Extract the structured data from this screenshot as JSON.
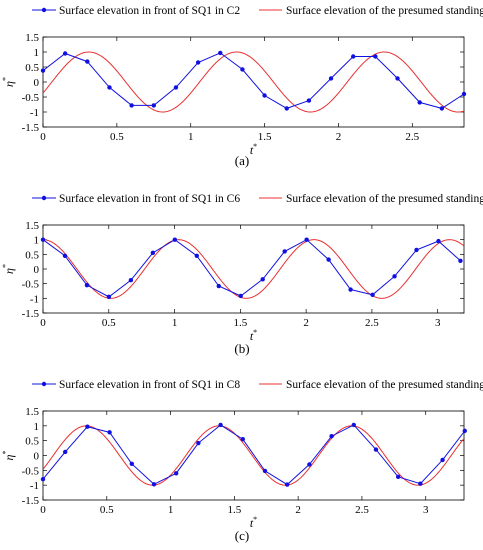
{
  "chart_data": [
    {
      "type": "line",
      "panel_label": "(a)",
      "xlabel": "t*",
      "ylabel": "η*",
      "xlim": [
        0,
        2.85
      ],
      "ylim": [
        -1.5,
        1.5
      ],
      "xticks": [
        "0",
        "0.5",
        "1",
        "1.5",
        "2",
        "2.5"
      ],
      "xtick_values": [
        0,
        0.5,
        1,
        1.5,
        2,
        2.5
      ],
      "yticks": [
        "-1.5",
        "-1",
        "-0.5",
        "0",
        "0.5",
        "1",
        "1.5"
      ],
      "ytick_values": [
        -1.5,
        -1,
        -0.5,
        0,
        0.5,
        1,
        1.5
      ],
      "grid": false,
      "legend_position": "top",
      "series": [
        {
          "name": "Surface elevation in front of SQ1 in C2",
          "color": "#1010e0",
          "marker": "dot",
          "x": [
            0,
            0.15,
            0.3,
            0.45,
            0.6,
            0.75,
            0.9,
            1.05,
            1.2,
            1.35,
            1.5,
            1.65,
            1.8,
            1.95,
            2.1,
            2.25,
            2.4,
            2.55,
            2.7,
            2.85
          ],
          "y": [
            0.38,
            0.95,
            0.68,
            -0.18,
            -0.78,
            -0.78,
            -0.18,
            0.65,
            0.97,
            0.42,
            -0.45,
            -0.88,
            -0.62,
            0.12,
            0.85,
            0.85,
            0.12,
            -0.68,
            -0.88,
            -0.4
          ]
        },
        {
          "name": "Surface elevation of the presumed standing wave",
          "color": "#e83030",
          "function": "sine",
          "amplitude": 1,
          "period": 1,
          "phase_offset": 0.06
        }
      ]
    },
    {
      "type": "line",
      "panel_label": "(b)",
      "xlabel": "t*",
      "ylabel": "η*",
      "xlim": [
        0,
        3.2
      ],
      "ylim": [
        -1.5,
        1.5
      ],
      "xticks": [
        "0",
        "0.5",
        "1",
        "1.5",
        "2",
        "2.5",
        "3"
      ],
      "xtick_values": [
        0,
        0.5,
        1,
        1.5,
        2,
        2.5,
        3
      ],
      "yticks": [
        "-1.5",
        "-1",
        "-0.5",
        "0",
        "0.5",
        "1",
        "1.5"
      ],
      "ytick_values": [
        -1.5,
        -1,
        -0.5,
        0,
        0.5,
        1,
        1.5
      ],
      "grid": false,
      "legend_position": "top",
      "series": [
        {
          "name": "Surface elevation in front of SQ1 in C6",
          "color": "#1010e0",
          "marker": "dot",
          "x": [
            0,
            0.167,
            0.334,
            0.501,
            0.668,
            0.835,
            1.002,
            1.169,
            1.336,
            1.503,
            1.67,
            1.837,
            2.004,
            2.171,
            2.338,
            2.505,
            2.672,
            2.839,
            3.006,
            3.173
          ],
          "y": [
            1.0,
            0.45,
            -0.55,
            -0.95,
            -0.38,
            0.55,
            1.0,
            0.45,
            -0.58,
            -0.92,
            -0.35,
            0.6,
            1.0,
            0.32,
            -0.7,
            -0.88,
            -0.25,
            0.65,
            0.95,
            0.28
          ]
        },
        {
          "name": "Surface elevation of the presumed standing wave",
          "color": "#e83030",
          "function": "cosine",
          "amplitude": 1,
          "period": 1.03,
          "phase_offset": 0
        }
      ]
    },
    {
      "type": "line",
      "panel_label": "(c)",
      "xlabel": "t*",
      "ylabel": "η*",
      "xlim": [
        0,
        3.3
      ],
      "ylim": [
        -1.5,
        1.5
      ],
      "xticks": [
        "0",
        "0.5",
        "1",
        "1.5",
        "2",
        "2.5",
        "3"
      ],
      "xtick_values": [
        0,
        0.5,
        1,
        1.5,
        2,
        2.5,
        3
      ],
      "yticks": [
        "-1.5",
        "-1",
        "-0.5",
        "0",
        "0.5",
        "1",
        "1.5"
      ],
      "ytick_values": [
        -1.5,
        -1,
        -0.5,
        0,
        0.5,
        1,
        1.5
      ],
      "grid": false,
      "legend_position": "top",
      "series": [
        {
          "name": "Surface elevation in front of SQ1 in C8",
          "color": "#1010e0",
          "marker": "dot",
          "x": [
            0,
            0.174,
            0.348,
            0.522,
            0.696,
            0.87,
            1.044,
            1.218,
            1.392,
            1.566,
            1.74,
            1.914,
            2.088,
            2.262,
            2.436,
            2.61,
            2.784,
            2.958,
            3.132,
            3.306
          ],
          "y": [
            -0.8,
            0.12,
            0.97,
            0.78,
            -0.28,
            -0.97,
            -0.6,
            0.42,
            1.03,
            0.55,
            -0.52,
            -0.98,
            -0.3,
            0.65,
            1.03,
            0.2,
            -0.72,
            -0.95,
            -0.15,
            0.83
          ]
        },
        {
          "name": "Surface elevation of the presumed standing wave",
          "color": "#e83030",
          "function": "sine",
          "amplitude": 1,
          "period": 1.04,
          "phase_offset": 0.08
        }
      ]
    }
  ]
}
